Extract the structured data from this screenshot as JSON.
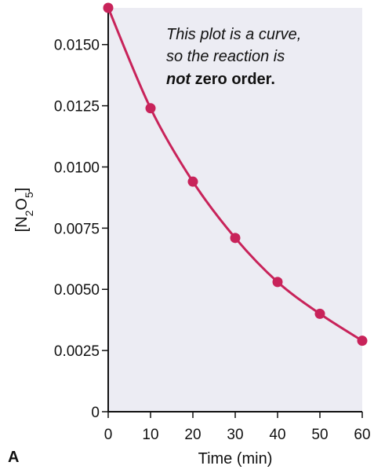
{
  "panel_label": "A",
  "chart_data": {
    "type": "line",
    "title": "",
    "xlabel": "Time (min)",
    "ylabel": {
      "prefix": "[N",
      "sub1": "2",
      "mid": "O",
      "sub2": "5",
      "suffix": "]"
    },
    "xlim": [
      0,
      60
    ],
    "ylim": [
      0,
      0.0165
    ],
    "xticks": [
      0,
      10,
      20,
      30,
      40,
      50,
      60
    ],
    "xtick_labels": [
      "0",
      "10",
      "20",
      "30",
      "40",
      "50",
      "60"
    ],
    "yticks": [
      0,
      0.0025,
      0.005,
      0.0075,
      0.01,
      0.0125,
      0.015
    ],
    "ytick_labels": [
      "0",
      "0.0025",
      "0.0050",
      "0.0075",
      "0.0100",
      "0.0125",
      "0.0150"
    ],
    "grid": false,
    "x": [
      0,
      10,
      20,
      30,
      40,
      50,
      60
    ],
    "series": [
      {
        "values": [
          0.0165,
          0.0124,
          0.0094,
          0.0071,
          0.0053,
          0.004,
          0.0029
        ]
      }
    ],
    "annotation": {
      "line1": "This plot is a curve,",
      "line2": "so the reaction is",
      "line3_bold_italic": "not",
      "line3_bold": " zero order."
    },
    "colors": {
      "plot_background": "#ececf3",
      "series": "#c8235a",
      "axis": "#111111"
    }
  }
}
